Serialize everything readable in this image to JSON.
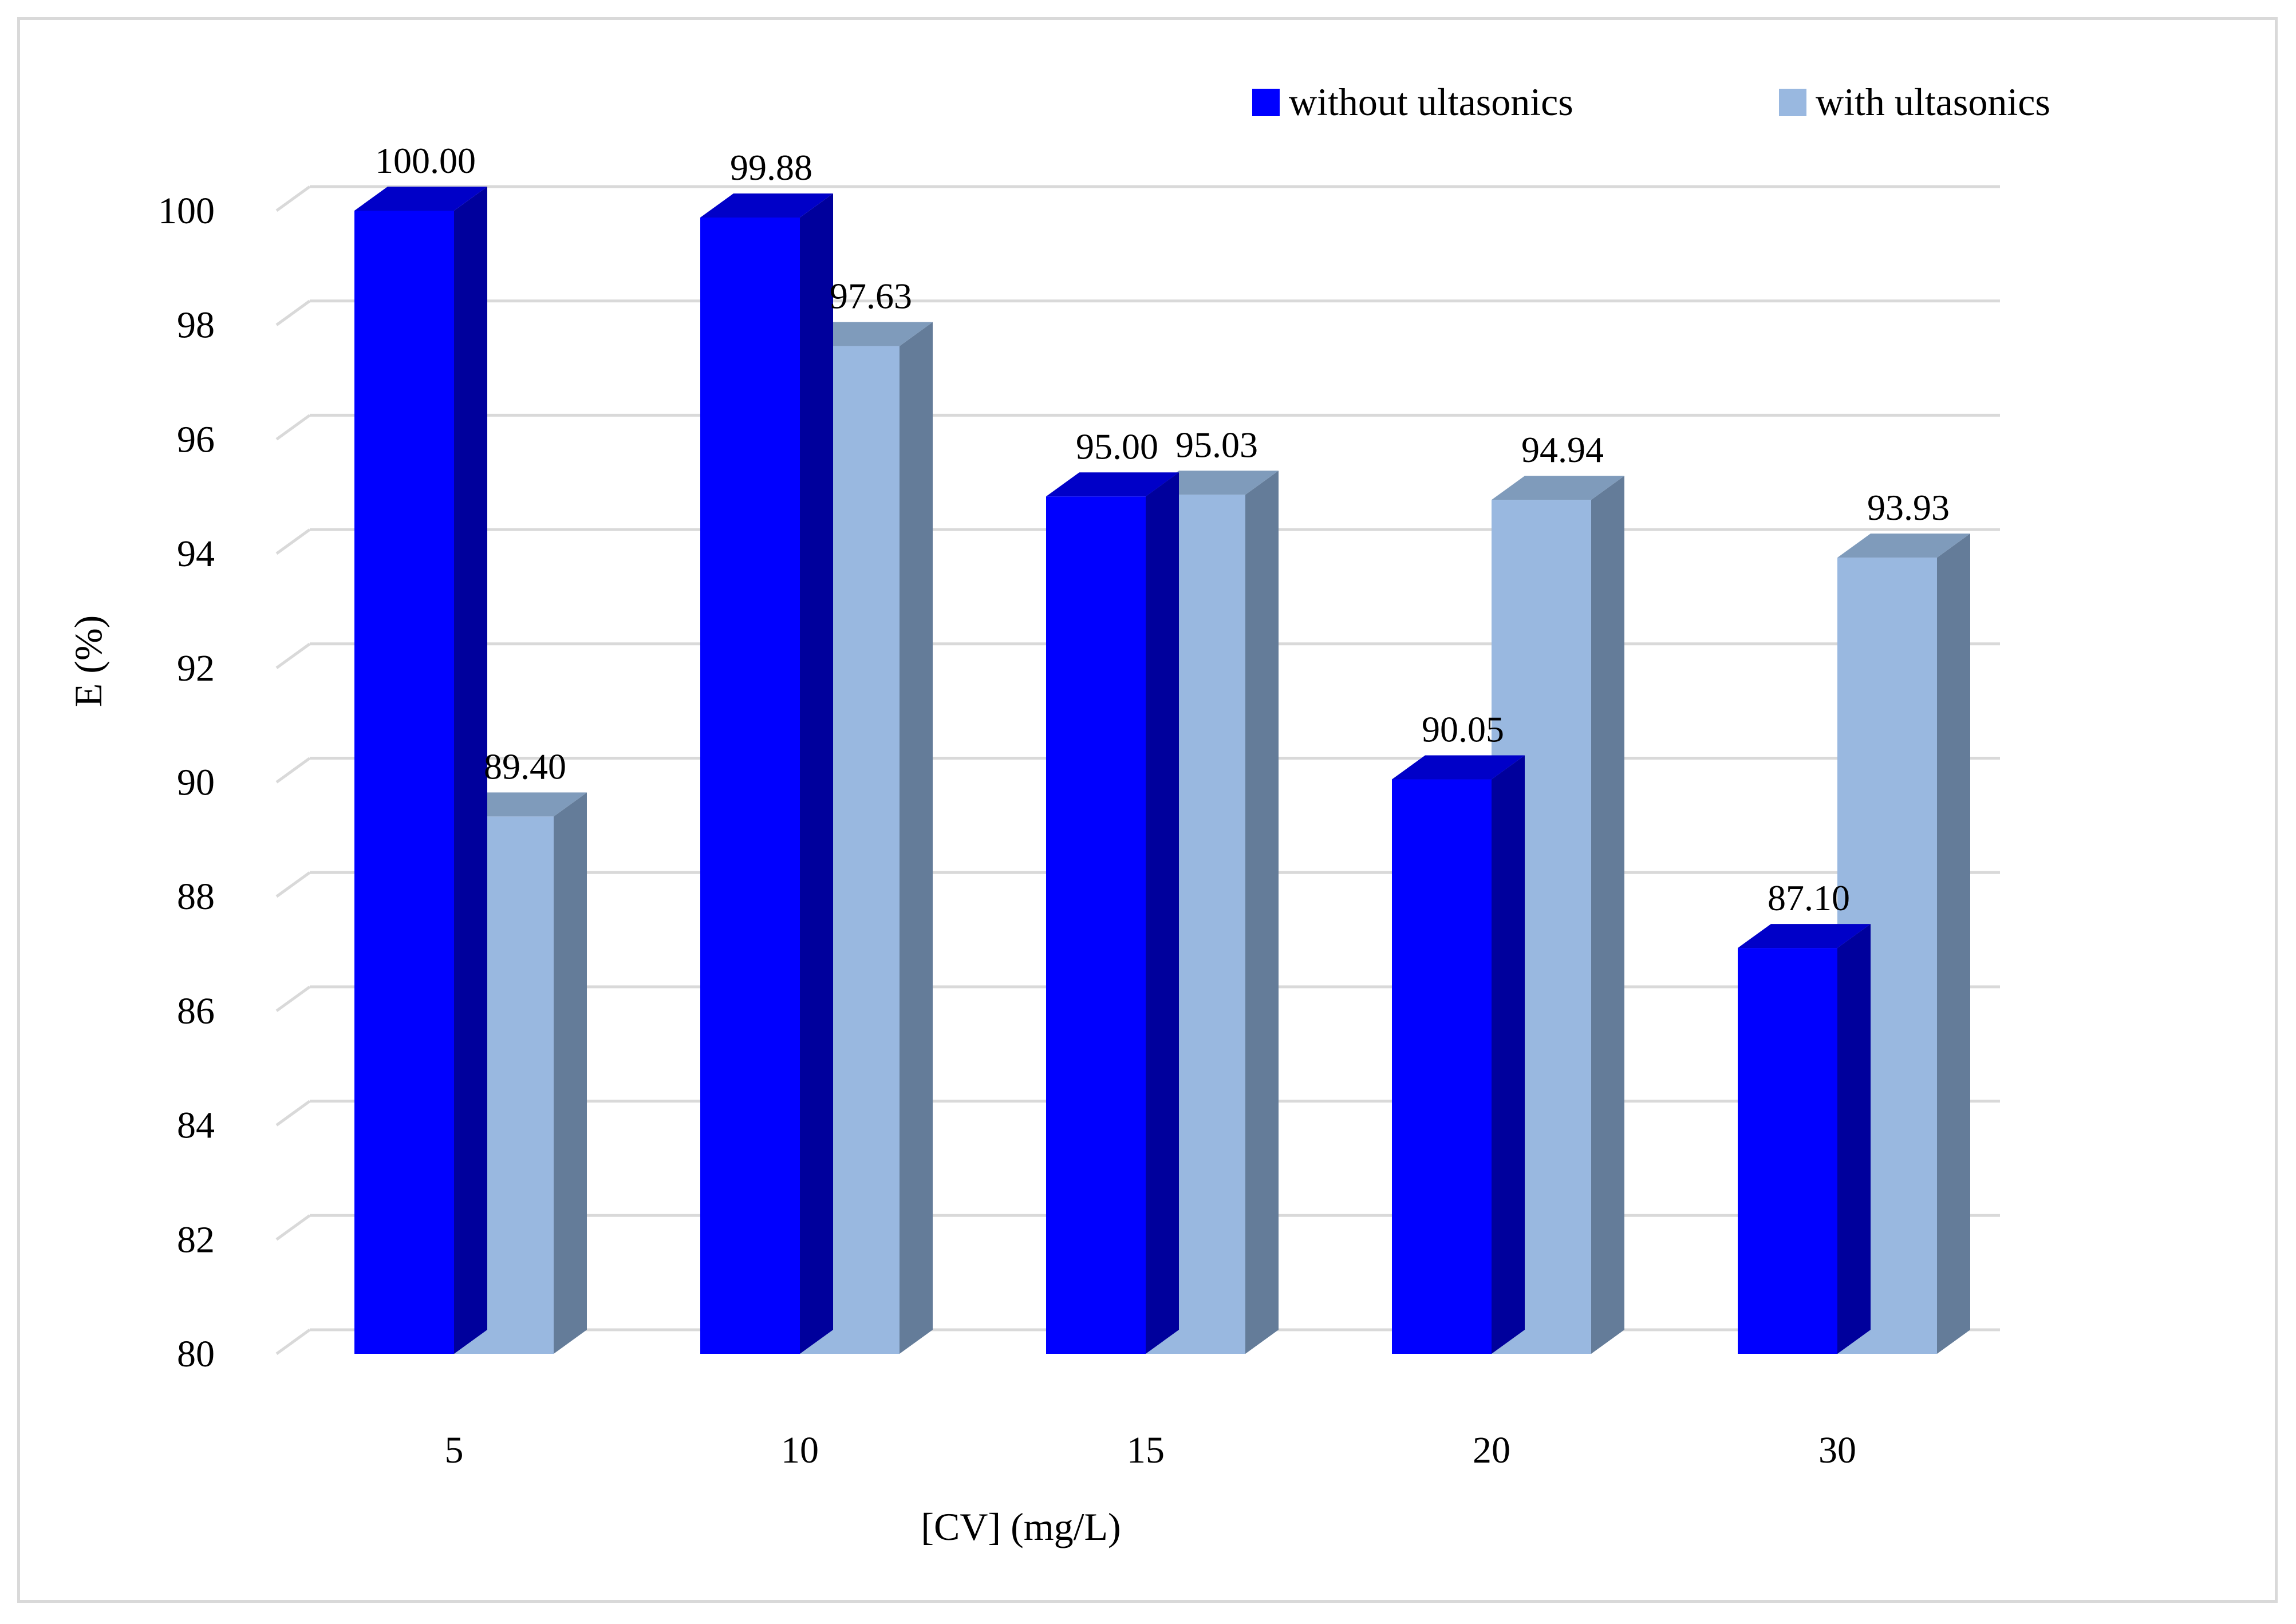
{
  "chart_data": {
    "type": "bar",
    "title": "",
    "xlabel": "[CV] (mg/L)",
    "ylabel": "E (%)",
    "ylim": [
      80,
      100
    ],
    "yticks": [
      "80",
      "82",
      "84",
      "86",
      "88",
      "90",
      "92",
      "94",
      "96",
      "98",
      "100"
    ],
    "categories": [
      "5",
      "10",
      "15",
      "20",
      "30"
    ],
    "grid": true,
    "legend_position": "top-right",
    "series": [
      {
        "name": "without ultasonics",
        "color": "#0000ff",
        "top_color": "#0000c8",
        "side_color": "#00009c",
        "values": [
          100.0,
          99.88,
          95.0,
          90.05,
          87.1
        ],
        "labels": [
          "100.00",
          "99.88",
          "95.00",
          "90.05",
          "87.10"
        ]
      },
      {
        "name": "with ultasonics",
        "color": "#99b8e0",
        "top_color": "#7f9bbb",
        "side_color": "#647c99",
        "values": [
          89.4,
          97.63,
          95.03,
          94.94,
          93.93
        ],
        "labels": [
          "89.40",
          "97.63",
          "95.03",
          "94.94",
          "93.93"
        ]
      }
    ]
  }
}
